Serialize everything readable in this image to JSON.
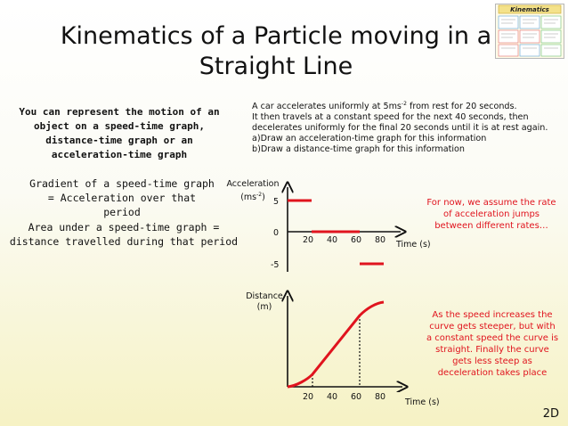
{
  "title": {
    "line1": "Kinematics of a Particle moving in a",
    "line2": "Straight Line"
  },
  "thumbnail": {
    "heading": "Kinematics"
  },
  "left": {
    "intro": "You can represent the motion of an object on a speed-time graph, distance-time graph or an acceleration-time graph",
    "gradient": "Gradient of a speed-time graph = Acceleration over that period",
    "area": "Area under a speed-time graph = distance travelled during that period"
  },
  "problem": {
    "line1_pre": "A car accelerates uniformly at 5ms",
    "line1_sup": "-2",
    "line1_post": " from rest for 20 seconds.",
    "line2": "It then travels at a constant speed for the next 40 seconds, then decelerates uniformly for the final 20 seconds until it is at rest again.",
    "part_a": "a)Draw an acceleration-time graph for this information",
    "part_b": "b)Draw a distance-time graph for this information"
  },
  "acc_graph": {
    "ylabel": "Acceleration",
    "yunit_pre": "(ms",
    "yunit_sup": "-2",
    "yunit_post": ")",
    "ytick_5": "5",
    "ytick_0": "0",
    "ytick_m5": "-5",
    "xtick_20": "20",
    "xtick_40": "40",
    "xtick_60": "60",
    "xtick_80": "80",
    "xlabel": "Time (s)"
  },
  "dist_graph": {
    "ylabel": "Distance",
    "yunit": "(m)",
    "xtick_20": "20",
    "xtick_40": "40",
    "xtick_60": "60",
    "xtick_80": "80",
    "xlabel": "Time (s)"
  },
  "chart_data": [
    {
      "type": "line",
      "title": "",
      "xlabel": "Time (s)",
      "ylabel": "Acceleration (ms-2)",
      "x_ticks": [
        20,
        40,
        60,
        80
      ],
      "y_ticks": [
        5,
        0,
        -5
      ],
      "xlim": [
        0,
        80
      ],
      "ylim": [
        -5,
        5
      ],
      "segments": [
        {
          "x": [
            0,
            20
          ],
          "y": [
            5,
            5
          ]
        },
        {
          "x": [
            20,
            60
          ],
          "y": [
            0,
            0
          ]
        },
        {
          "x": [
            60,
            80
          ],
          "y": [
            -5,
            -5
          ]
        }
      ],
      "color": "#e0141e"
    },
    {
      "type": "line",
      "title": "",
      "xlabel": "Time (s)",
      "ylabel": "Distance (m)",
      "x_ticks": [
        20,
        40,
        60,
        80
      ],
      "xlim": [
        0,
        80
      ],
      "shape": "curve from rest: concave up 0-20 s, straight 20-60 s, concave down 60-80 s",
      "color": "#e0141e"
    }
  ],
  "notes": {
    "acc_note": "For now, we assume the rate of acceleration jumps between different rates…",
    "dist_note": "As the speed increases the curve gets steeper, but with a constant speed the curve is straight. Finally the curve gets less steep as deceleration takes place"
  },
  "corner_label": "2D"
}
